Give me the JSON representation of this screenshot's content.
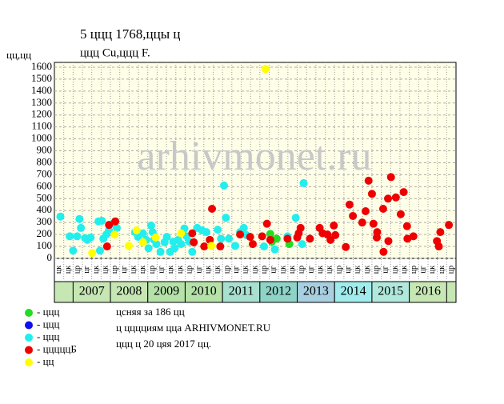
{
  "chart_data": {
    "type": "scatter",
    "title": "5 ццц 1768,ццы ц",
    "subtitle": "ццц Cu,ццц F.",
    "y_label": "цц,цц",
    "watermark": "arhivmonet.ru",
    "xlim": [
      2006.5,
      2017.25
    ],
    "ylim": [
      0,
      1640
    ],
    "yticks": [
      0,
      100,
      200,
      300,
      400,
      500,
      600,
      700,
      800,
      900,
      1000,
      1100,
      1200,
      1300,
      1400,
      1500,
      1600
    ],
    "grid": true,
    "quarter_labels": [
      "цк",
      "цк",
      "цр",
      "цг",
      "цк",
      "цк",
      "цр",
      "цг",
      "цк",
      "цк",
      "цр",
      "цг",
      "цк",
      "цк",
      "цр",
      "цг",
      "цк",
      "цк",
      "цр",
      "цг",
      "цк",
      "цк",
      "цр",
      "цг",
      "цк",
      "цк",
      "цр",
      "цг",
      "цк",
      "цк",
      "цр",
      "цг",
      "цк",
      "цк",
      "цр",
      "цг",
      "цк",
      "цк",
      "цр",
      "цг",
      "цк",
      "цк",
      "цр"
    ],
    "years": [
      "2007",
      "2008",
      "2009",
      "2010",
      "2011",
      "2012",
      "2013",
      "2014",
      "2015",
      "2016"
    ],
    "year_colors": [
      "#c6e7b4",
      "#c6e7b4",
      "#b5e2a8",
      "#b5e2a8",
      "#a8e0d0",
      "#8ed3c6",
      "#a8cfe0",
      "#a0ecec",
      "#b0e8dc",
      "#c6e7b4"
    ],
    "series": [
      {
        "name": "- ццц",
        "color": "#22dd22",
        "x": [
          2012.28,
          2012.45,
          2012.79,
          2012.32
        ],
        "values": [
          205,
          165,
          120,
          140
        ]
      },
      {
        "name": "- ццц",
        "color": "#1010ee",
        "x": [],
        "values": []
      },
      {
        "name": "- ццц",
        "color": "#22eeee",
        "x": [
          2006.66,
          2007.0,
          2006.91,
          2007.11,
          2007.17,
          2007.21,
          2007.32,
          2007.38,
          2007.47,
          2007.68,
          2007.77,
          2007.81,
          2007.89,
          2007.96,
          2008.06,
          2008.17,
          2007.72,
          2008.66,
          2008.74,
          2008.87,
          2008.96,
          2009.09,
          2009.13,
          2009.02,
          2009.17,
          2009.23,
          2009.34,
          2009.45,
          2009.51,
          2009.6,
          2009.68,
          2009.72,
          2009.81,
          2009.89,
          2009.98,
          2010.04,
          2010.11,
          2010.19,
          2010.32,
          2010.45,
          2010.57,
          2010.66,
          2010.87,
          2010.96,
          2011.04,
          2011.09,
          2011.17,
          2011.34,
          2011.47,
          2011.57,
          2011.64,
          2012.11,
          2012.4,
          2012.74,
          2012.96,
          2013.13,
          2013.17
        ],
        "values": [
          350,
          65,
          185,
          185,
          330,
          255,
          170,
          155,
          175,
          310,
          315,
          165,
          200,
          235,
          290,
          255,
          65,
          220,
          180,
          210,
          155,
          275,
          220,
          85,
          155,
          120,
          55,
          135,
          180,
          55,
          140,
          85,
          155,
          120,
          250,
          185,
          140,
          55,
          255,
          235,
          220,
          155,
          240,
          165,
          610,
          340,
          165,
          105,
          220,
          255,
          195,
          100,
          75,
          185,
          340,
          120,
          630
        ]
      },
      {
        "name": "- цццццБ",
        "color": "#ee0000",
        "x": [
          2007.96,
          2008.13,
          2007.91,
          2010.19,
          2010.23,
          2010.51,
          2010.66,
          2010.72,
          2010.94,
          2011.47,
          2011.74,
          2011.81,
          2012.06,
          2012.19,
          2012.28,
          2012.74,
          2013.0,
          2013.09,
          2013.04,
          2013.34,
          2013.6,
          2013.68,
          2013.81,
          2013.89,
          2013.98,
          2014.02,
          2014.3,
          2014.4,
          2014.49,
          2014.74,
          2014.83,
          2014.91,
          2015.0,
          2015.04,
          2015.13,
          2015.14,
          2015.3,
          2015.31,
          2015.43,
          2015.44,
          2015.51,
          2015.64,
          2015.77,
          2015.85,
          2015.94,
          2015.95,
          2016.11,
          2016.74,
          2016.79,
          2016.83,
          2017.06
        ],
        "values": [
          280,
          310,
          100,
          210,
          135,
          100,
          155,
          415,
          100,
          200,
          180,
          120,
          185,
          290,
          155,
          165,
          175,
          255,
          210,
          165,
          255,
          210,
          200,
          155,
          275,
          195,
          95,
          450,
          355,
          300,
          395,
          650,
          540,
          290,
          175,
          220,
          415,
          55,
          500,
          145,
          680,
          510,
          370,
          555,
          270,
          165,
          185,
          145,
          100,
          220,
          280
        ]
      },
      {
        "name": "- цц",
        "color": "#ffff00",
        "x": [
          2012.15,
          2007.51,
          2008.11,
          2008.49,
          2008.7,
          2008.87,
          2009.21,
          2009.89,
          2010.7
        ],
        "values": [
          1585,
          45,
          200,
          105,
          235,
          135,
          175,
          210,
          105
        ]
      }
    ],
    "notes": [
      "цсняя за 186 цц",
      "ц цццциям цца ARHIVMONET.RU",
      "ццц ц 20 цяя 2017 цц."
    ]
  }
}
